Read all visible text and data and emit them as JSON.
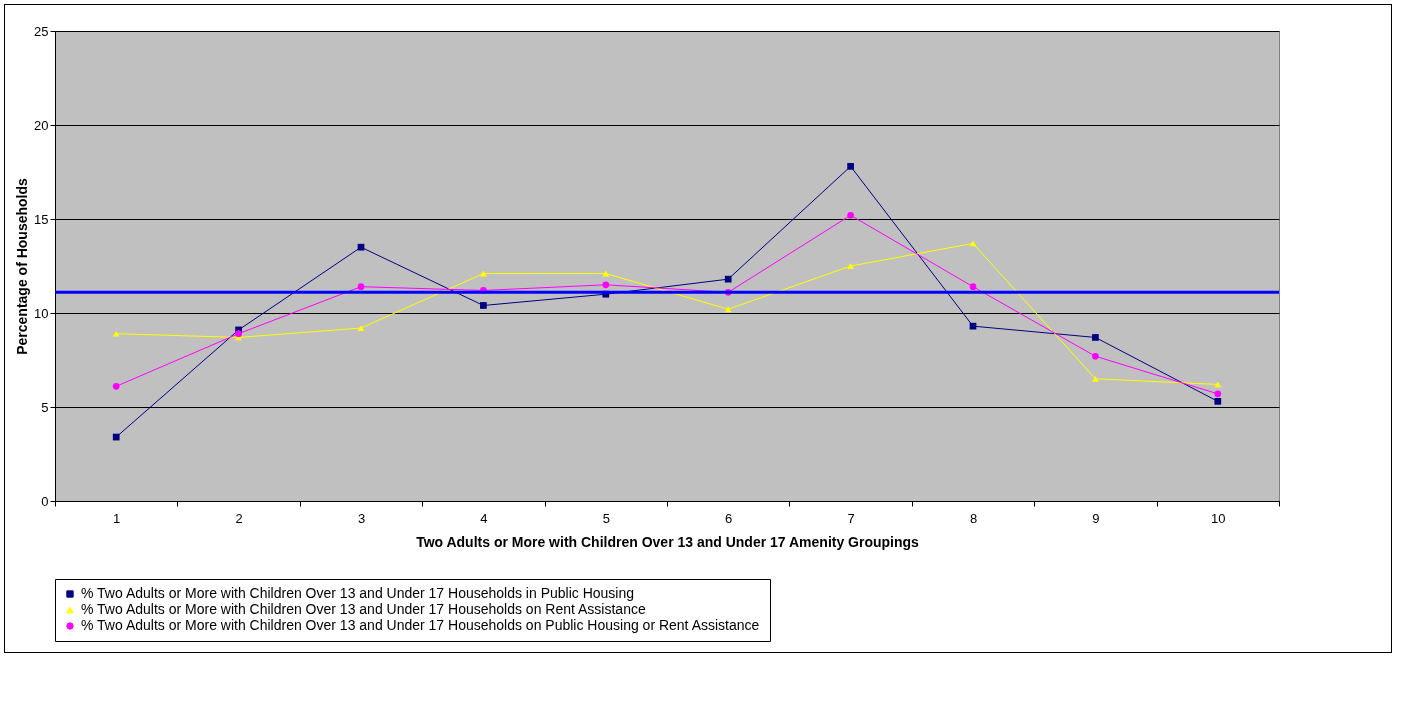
{
  "chart_data": {
    "type": "line",
    "xlabel": "Two Adults or More with Children Over 13 and Under 17 Amenity Groupings",
    "ylabel": "Percentage of Households",
    "categories": [
      "1",
      "2",
      "3",
      "4",
      "5",
      "6",
      "7",
      "8",
      "9",
      "10"
    ],
    "series": [
      {
        "name": "% Two Adults or More with Children Over 13 and Under 17 Households in Public Housing",
        "color": "#000080",
        "marker": "square",
        "values": [
          3.4,
          9.1,
          13.5,
          10.4,
          11.0,
          11.8,
          17.8,
          9.3,
          8.7,
          5.3
        ]
      },
      {
        "name": "% Two Adults or More with Children Over 13 and Under 17 Households on Rent Assistance",
        "color": "#ffff00",
        "marker": "triangle",
        "values": [
          8.9,
          8.7,
          9.2,
          12.1,
          12.1,
          10.2,
          12.5,
          13.7,
          6.5,
          6.2
        ]
      },
      {
        "name": "% Two Adults or More with Children Over 13 and Under 17 Households on Public Housing or Rent Assistance",
        "color": "#ff00ff",
        "marker": "circle",
        "values": [
          6.1,
          8.9,
          11.4,
          11.2,
          11.5,
          11.1,
          15.2,
          11.4,
          7.7,
          5.7
        ]
      }
    ],
    "ylim": [
      0,
      25
    ],
    "yticks": [
      0,
      5,
      10,
      15,
      20,
      25
    ],
    "grid": "y",
    "legend": "bottom",
    "line_style": "solid",
    "ref_lines": [
      {
        "axis": "y",
        "value": 11.1,
        "color": "#0000ff"
      }
    ]
  }
}
